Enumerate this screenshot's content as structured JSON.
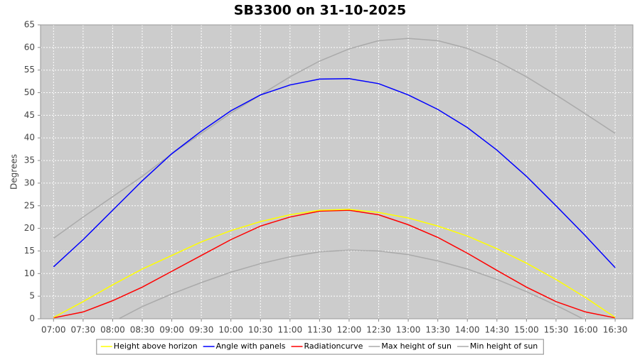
{
  "chart_data": {
    "type": "line",
    "title": "SB3300 on 31-10-2025",
    "y_label": "Degrees",
    "x": [
      7,
      7.5,
      8,
      8.5,
      9,
      9.5,
      10,
      10.5,
      11,
      11.5,
      12,
      12.5,
      13,
      13.5,
      14,
      14.5,
      15,
      15.5,
      16,
      16.5
    ],
    "xlim": [
      6.78,
      16.8
    ],
    "xticks": [
      {
        "value": 7,
        "label": "07:00"
      },
      {
        "value": 7.5,
        "label": "07:30"
      },
      {
        "value": 8,
        "label": "08:00"
      },
      {
        "value": 8.5,
        "label": "08:30"
      },
      {
        "value": 9,
        "label": "09:00"
      },
      {
        "value": 9.5,
        "label": "09:30"
      },
      {
        "value": 10,
        "label": "10:00"
      },
      {
        "value": 10.5,
        "label": "10:30"
      },
      {
        "value": 11,
        "label": "11:00"
      },
      {
        "value": 11.5,
        "label": "11:30"
      },
      {
        "value": 12,
        "label": "12:00"
      },
      {
        "value": 12.5,
        "label": "12:30"
      },
      {
        "value": 13,
        "label": "13:00"
      },
      {
        "value": 13.5,
        "label": "13:30"
      },
      {
        "value": 14,
        "label": "14:00"
      },
      {
        "value": 14.5,
        "label": "14:30"
      },
      {
        "value": 15,
        "label": "15:00"
      },
      {
        "value": 15.5,
        "label": "15:30"
      },
      {
        "value": 16,
        "label": "16:00"
      },
      {
        "value": 16.5,
        "label": "16:30"
      }
    ],
    "ylim": [
      0,
      65
    ],
    "yticks": [
      0,
      5,
      10,
      15,
      20,
      25,
      30,
      35,
      40,
      45,
      50,
      55,
      60,
      65
    ],
    "grid": true,
    "series": [
      {
        "name": "Height above horizon",
        "color": "#ffff00",
        "values": [
          0.3,
          3.8,
          7.5,
          11,
          14,
          17,
          19.5,
          21.5,
          23,
          24,
          24.2,
          23.5,
          22.3,
          20.5,
          18.3,
          15.5,
          12.3,
          8.7,
          4.7,
          0.3
        ]
      },
      {
        "name": "Angle with panels",
        "color": "#0000ff",
        "values": [
          11.5,
          17.5,
          24,
          30.5,
          36.5,
          41.5,
          46,
          49.5,
          51.7,
          53,
          53.1,
          52,
          49.5,
          46.3,
          42.3,
          37.3,
          31.5,
          25,
          18.3,
          11.3
        ]
      },
      {
        "name": "Radiationcurve",
        "color": "#ff0000",
        "values": [
          0.2,
          1.5,
          4,
          7,
          10.5,
          14,
          17.5,
          20.5,
          22.5,
          23.8,
          24,
          23,
          20.8,
          18,
          14.5,
          10.7,
          7,
          3.8,
          1.5,
          0.2
        ]
      },
      {
        "name": "Max height of sun",
        "color": "#aaaaaa",
        "values": [
          17.8,
          22.5,
          27,
          31.5,
          36.5,
          41,
          45.5,
          49.5,
          53.5,
          57,
          59.7,
          61.5,
          62,
          61.5,
          59.8,
          57,
          53.5,
          49.5,
          45.3,
          41
        ]
      },
      {
        "name": "Min height of sun",
        "color": "#aaaaaa",
        "values": [
          null,
          null,
          -0.7,
          2.7,
          5.5,
          8,
          10.3,
          12.2,
          13.7,
          14.8,
          15.2,
          15,
          14.2,
          12.8,
          11,
          8.7,
          6,
          3,
          -0.3,
          null
        ]
      }
    ]
  }
}
